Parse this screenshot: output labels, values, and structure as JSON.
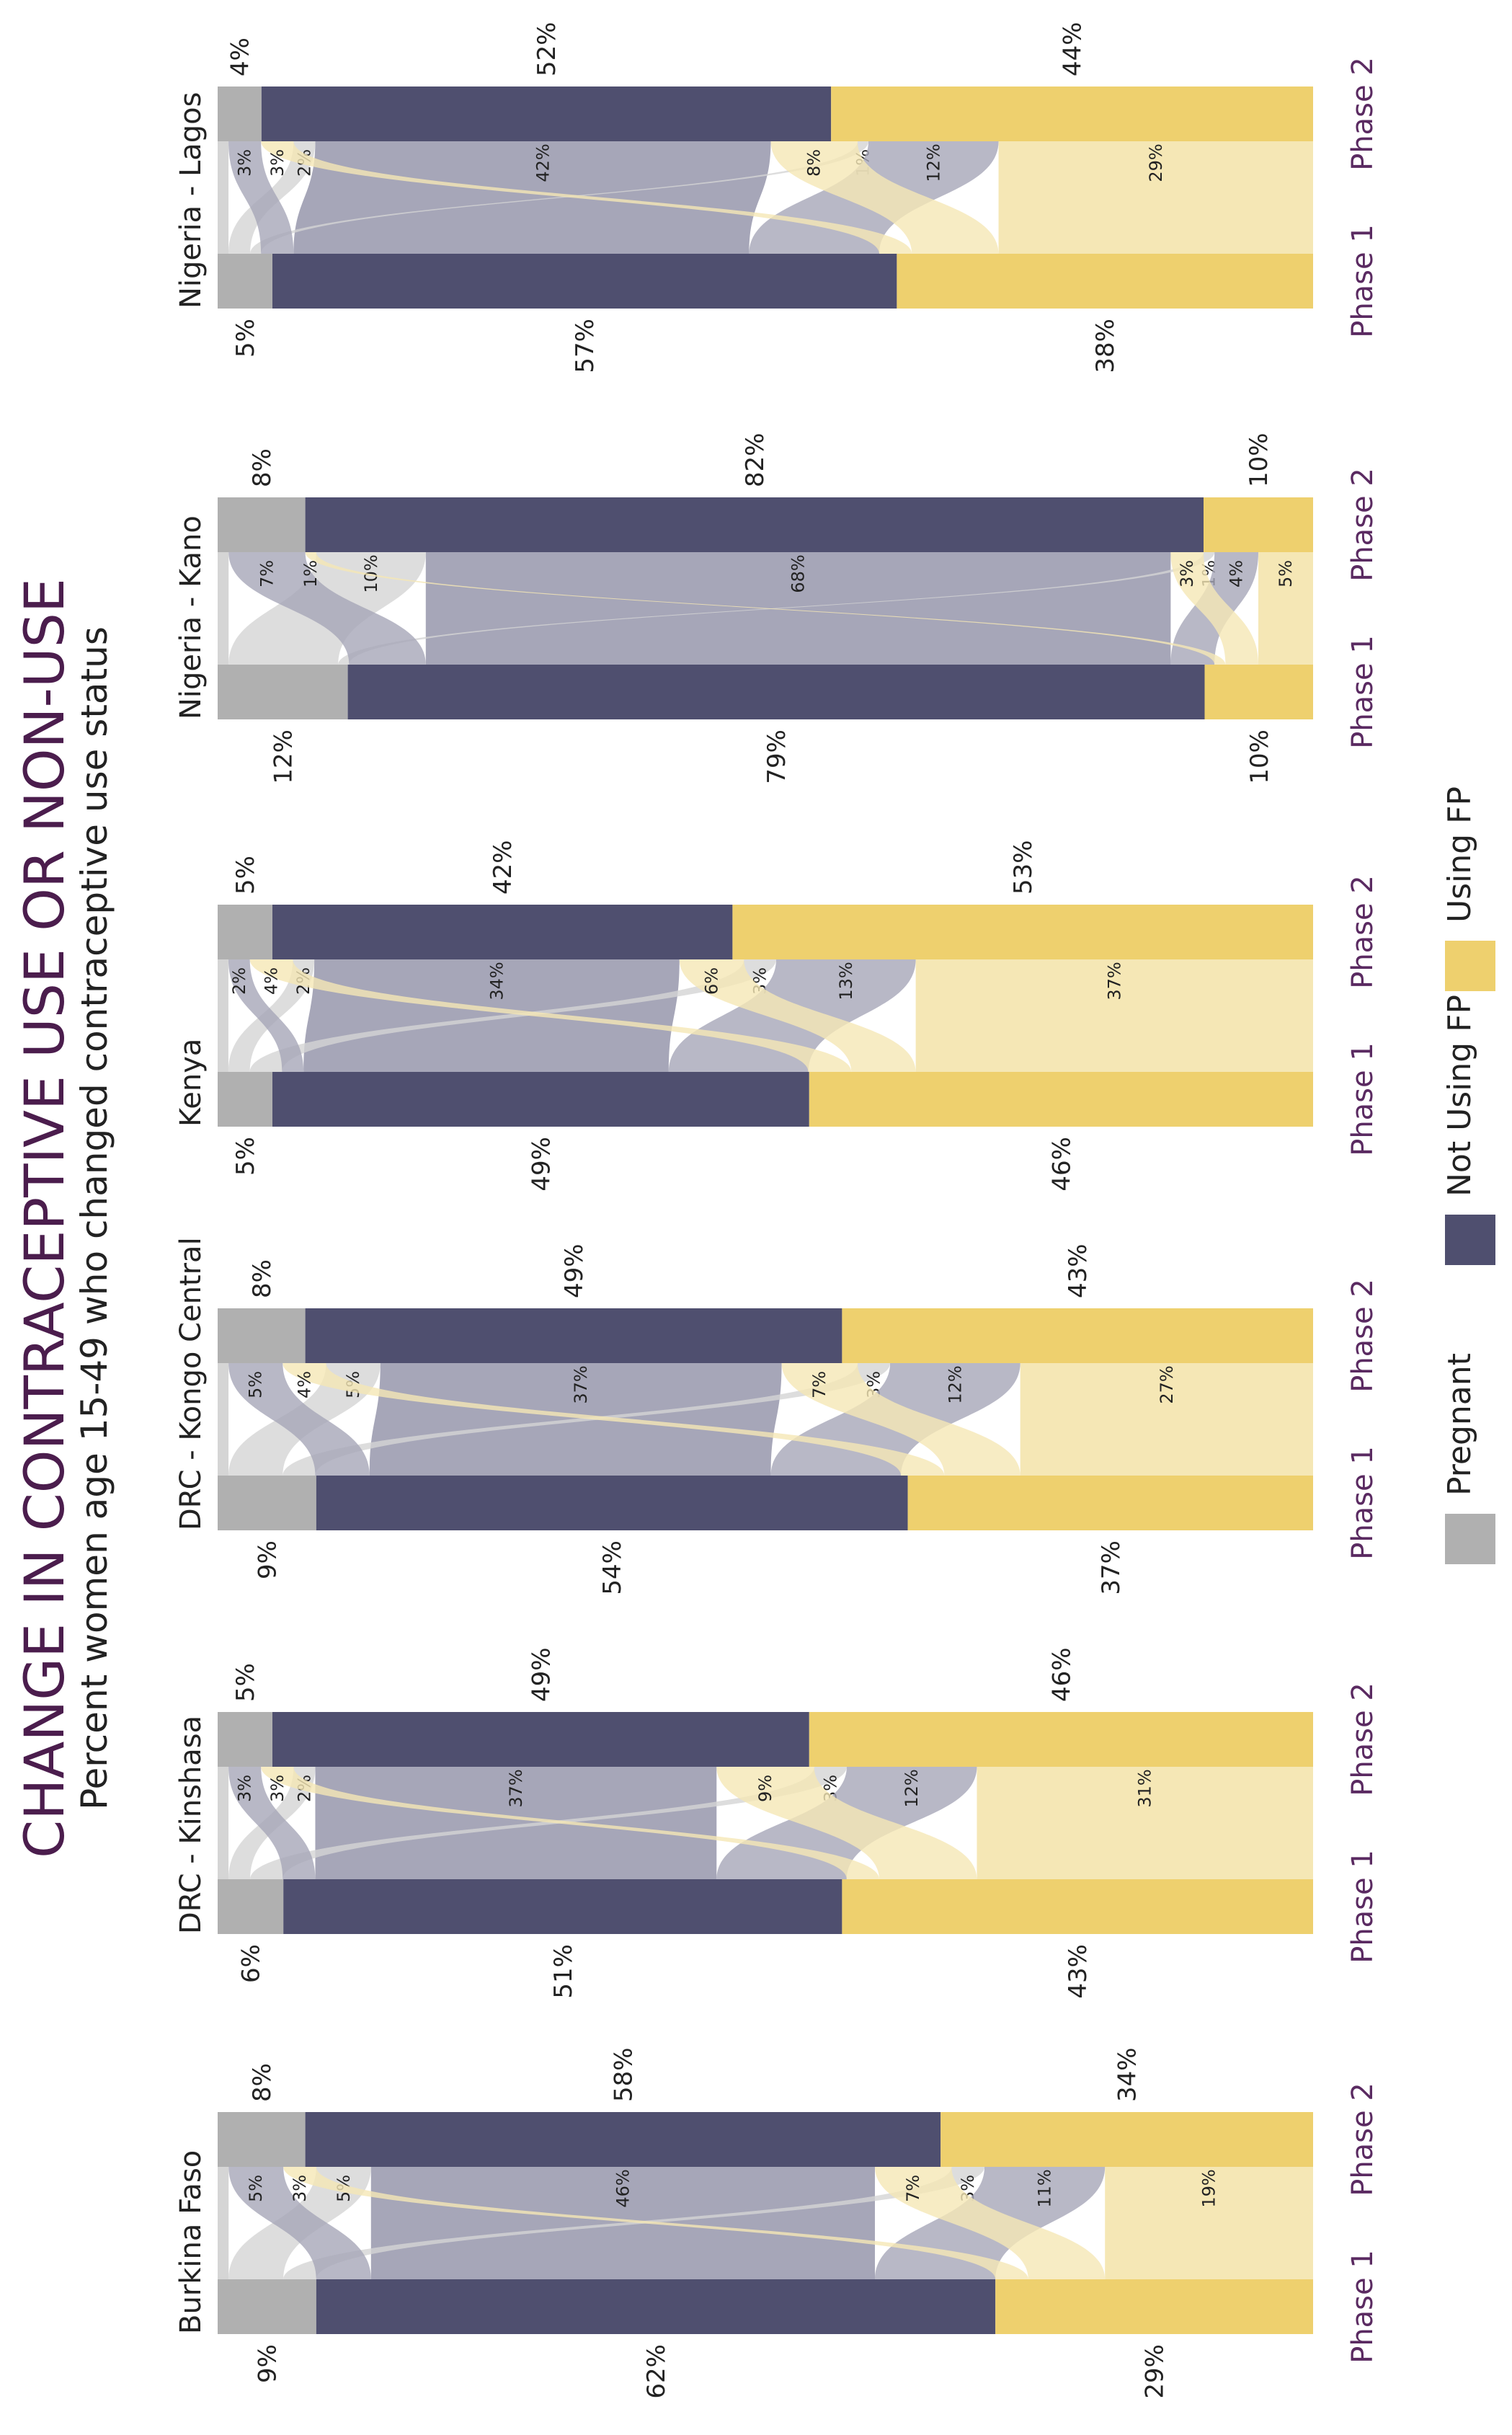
{
  "title": "CHANGE IN CONTRACEPTIVE USE OR NON-USE",
  "subtitle": "Percent women age 15-49 who changed contraceptive use status",
  "legend": [
    {
      "name": "Pregnant",
      "color": "#b0b0b0"
    },
    {
      "name": "Not Using FP",
      "color": "#4f4f6f"
    },
    {
      "name": "Using FP",
      "color": "#eed06e"
    }
  ],
  "phase_labels": [
    "Phase 1",
    "Phase 2"
  ],
  "colors": {
    "pregnant": "#b0b0b0",
    "not_using": "#4f4f6f",
    "using": "#eed06e",
    "flow_from_pregnant": "#d5d5d5",
    "flow_from_not_using": "#a6a6b8",
    "flow_from_using": "#f5e7b5",
    "title": "#4b1d4d",
    "phase": "#5a2a61"
  },
  "chart_data": [
    {
      "type": "sankey",
      "country": "Burkina Faso",
      "categories": [
        "Pregnant",
        "Not Using FP",
        "Using FP"
      ],
      "phase1": [
        9,
        62,
        29
      ],
      "phase2": [
        8,
        58,
        34
      ],
      "phase1_labels": [
        "9%",
        "62%",
        "29%"
      ],
      "phase2_labels": [
        "8%",
        "58%",
        "34%"
      ],
      "flows": [
        {
          "from": 0,
          "to": 0,
          "value": 1,
          "label": ""
        },
        {
          "from": 0,
          "to": 1,
          "value": 5,
          "label": "5%"
        },
        {
          "from": 0,
          "to": 2,
          "value": 3,
          "label": "3%"
        },
        {
          "from": 1,
          "to": 0,
          "value": 5,
          "label": "5%"
        },
        {
          "from": 1,
          "to": 1,
          "value": 46,
          "label": "46%"
        },
        {
          "from": 1,
          "to": 2,
          "value": 11,
          "label": "11%"
        },
        {
          "from": 2,
          "to": 0,
          "value": 3,
          "label": "3%"
        },
        {
          "from": 2,
          "to": 1,
          "value": 7,
          "label": "7%"
        },
        {
          "from": 2,
          "to": 2,
          "value": 19,
          "label": "19%"
        }
      ]
    },
    {
      "type": "sankey",
      "country": "DRC - Kinshasa",
      "categories": [
        "Pregnant",
        "Not Using FP",
        "Using FP"
      ],
      "phase1": [
        6,
        51,
        43
      ],
      "phase2": [
        5,
        49,
        46
      ],
      "phase1_labels": [
        "6%",
        "51%",
        "43%"
      ],
      "phase2_labels": [
        "5%",
        "49%",
        "46%"
      ],
      "flows": [
        {
          "from": 0,
          "to": 0,
          "value": 1,
          "label": ""
        },
        {
          "from": 0,
          "to": 1,
          "value": 2,
          "label": "2%"
        },
        {
          "from": 0,
          "to": 2,
          "value": 3,
          "label": "3%"
        },
        {
          "from": 1,
          "to": 0,
          "value": 3,
          "label": "3%"
        },
        {
          "from": 1,
          "to": 1,
          "value": 37,
          "label": "37%"
        },
        {
          "from": 1,
          "to": 2,
          "value": 12,
          "label": "12%"
        },
        {
          "from": 2,
          "to": 0,
          "value": 3,
          "label": "3%"
        },
        {
          "from": 2,
          "to": 1,
          "value": 9,
          "label": "9%"
        },
        {
          "from": 2,
          "to": 2,
          "value": 31,
          "label": "31%"
        }
      ]
    },
    {
      "type": "sankey",
      "country": "DRC - Kongo Central",
      "categories": [
        "Pregnant",
        "Not Using FP",
        "Using FP"
      ],
      "phase1": [
        9,
        54,
        37
      ],
      "phase2": [
        8,
        49,
        43
      ],
      "phase1_labels": [
        "9%",
        "54%",
        "37%"
      ],
      "phase2_labels": [
        "8%",
        "49%",
        "43%"
      ],
      "flows": [
        {
          "from": 0,
          "to": 0,
          "value": 1,
          "label": ""
        },
        {
          "from": 0,
          "to": 1,
          "value": 5,
          "label": "5%"
        },
        {
          "from": 0,
          "to": 2,
          "value": 3,
          "label": "3%"
        },
        {
          "from": 1,
          "to": 0,
          "value": 5,
          "label": "5%"
        },
        {
          "from": 1,
          "to": 1,
          "value": 37,
          "label": "37%"
        },
        {
          "from": 1,
          "to": 2,
          "value": 12,
          "label": "12%"
        },
        {
          "from": 2,
          "to": 0,
          "value": 4,
          "label": "4%"
        },
        {
          "from": 2,
          "to": 1,
          "value": 7,
          "label": "7%"
        },
        {
          "from": 2,
          "to": 2,
          "value": 27,
          "label": "27%"
        }
      ]
    },
    {
      "type": "sankey",
      "country": "Kenya",
      "categories": [
        "Pregnant",
        "Not Using FP",
        "Using FP"
      ],
      "phase1": [
        5,
        49,
        46
      ],
      "phase2": [
        5,
        42,
        53
      ],
      "phase1_labels": [
        "5%",
        "49%",
        "46%"
      ],
      "phase2_labels": [
        "5%",
        "42%",
        "53%"
      ],
      "flows": [
        {
          "from": 0,
          "to": 0,
          "value": 1,
          "label": ""
        },
        {
          "from": 0,
          "to": 1,
          "value": 2,
          "label": "2%"
        },
        {
          "from": 0,
          "to": 2,
          "value": 3,
          "label": "3%"
        },
        {
          "from": 1,
          "to": 0,
          "value": 2,
          "label": "2%"
        },
        {
          "from": 1,
          "to": 1,
          "value": 34,
          "label": "34%"
        },
        {
          "from": 1,
          "to": 2,
          "value": 13,
          "label": "13%"
        },
        {
          "from": 2,
          "to": 0,
          "value": 4,
          "label": "4%"
        },
        {
          "from": 2,
          "to": 1,
          "value": 6,
          "label": "6%"
        },
        {
          "from": 2,
          "to": 2,
          "value": 37,
          "label": "37%"
        }
      ]
    },
    {
      "type": "sankey",
      "country": "Nigeria - Kano",
      "categories": [
        "Pregnant",
        "Not Using FP",
        "Using FP"
      ],
      "phase1": [
        12,
        79,
        10
      ],
      "phase2": [
        8,
        82,
        10
      ],
      "phase1_labels": [
        "12%",
        "79%",
        "10%"
      ],
      "phase2_labels": [
        "8%",
        "82%",
        "10%"
      ],
      "flows": [
        {
          "from": 0,
          "to": 0,
          "value": 1,
          "label": ""
        },
        {
          "from": 0,
          "to": 1,
          "value": 10,
          "label": "10%"
        },
        {
          "from": 0,
          "to": 2,
          "value": 1,
          "label": "1%"
        },
        {
          "from": 1,
          "to": 0,
          "value": 7,
          "label": "7%"
        },
        {
          "from": 1,
          "to": 1,
          "value": 68,
          "label": "68%"
        },
        {
          "from": 1,
          "to": 2,
          "value": 4,
          "label": "4%"
        },
        {
          "from": 2,
          "to": 0,
          "value": 1,
          "label": "1%"
        },
        {
          "from": 2,
          "to": 1,
          "value": 3,
          "label": "3%"
        },
        {
          "from": 2,
          "to": 2,
          "value": 5,
          "label": "5%"
        }
      ]
    },
    {
      "type": "sankey",
      "country": "Nigeria - Lagos",
      "categories": [
        "Pregnant",
        "Not Using FP",
        "Using FP"
      ],
      "phase1": [
        5,
        57,
        38
      ],
      "phase2": [
        4,
        52,
        44
      ],
      "phase1_labels": [
        "5%",
        "57%",
        "38%"
      ],
      "phase2_labels": [
        "4%",
        "52%",
        "44%"
      ],
      "flows": [
        {
          "from": 0,
          "to": 0,
          "value": 1,
          "label": ""
        },
        {
          "from": 0,
          "to": 1,
          "value": 2,
          "label": "2%"
        },
        {
          "from": 0,
          "to": 2,
          "value": 1,
          "label": "1%"
        },
        {
          "from": 1,
          "to": 0,
          "value": 3,
          "label": "3%"
        },
        {
          "from": 1,
          "to": 1,
          "value": 42,
          "label": "42%"
        },
        {
          "from": 1,
          "to": 2,
          "value": 12,
          "label": "12%"
        },
        {
          "from": 2,
          "to": 0,
          "value": 3,
          "label": "3%"
        },
        {
          "from": 2,
          "to": 1,
          "value": 8,
          "label": "8%"
        },
        {
          "from": 2,
          "to": 2,
          "value": 29,
          "label": "29%"
        }
      ]
    }
  ]
}
